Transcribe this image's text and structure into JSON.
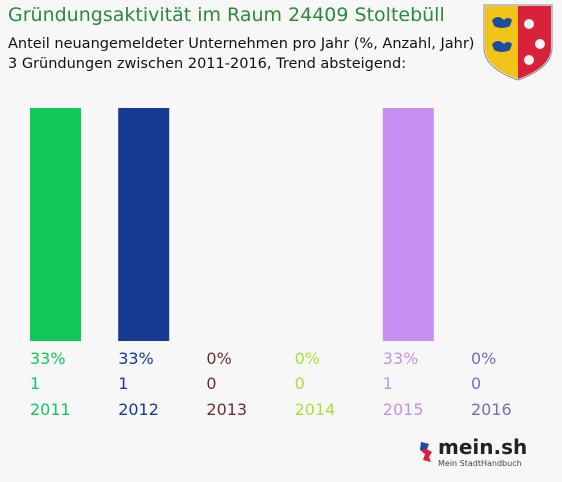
{
  "chart_data": {
    "type": "bar",
    "title": "Gründungsaktivität im Raum 24409 Stoltebüll",
    "subtitle_lines": [
      "Anteil neuangemeldeter Unternehmen pro Jahr (%, Anzahl, Jahr)",
      "3 Gründungen zwischen 2011-2016, Trend absteigend:"
    ],
    "categories": [
      "2011",
      "2012",
      "2013",
      "2014",
      "2015",
      "2016"
    ],
    "percent_labels": [
      "33%",
      "33%",
      "0%",
      "0%",
      "33%",
      "0%"
    ],
    "count_labels": [
      "1",
      "1",
      "0",
      "0",
      "1",
      "0"
    ],
    "values": [
      33,
      33,
      0,
      0,
      33,
      0
    ],
    "counts": [
      1,
      1,
      0,
      0,
      1,
      0
    ],
    "ylim": [
      0,
      33
    ],
    "colors": [
      "#12c85a",
      "#173a94",
      "#6b2c33",
      "#a9e03c",
      "#c78ff2",
      "#7a6bbd"
    ],
    "grid": false
  },
  "logo": {
    "text": "mein.sh",
    "tagline": "Mein StadtHandbuch"
  },
  "crest": "coat-of-arms-schleswig-holstein"
}
